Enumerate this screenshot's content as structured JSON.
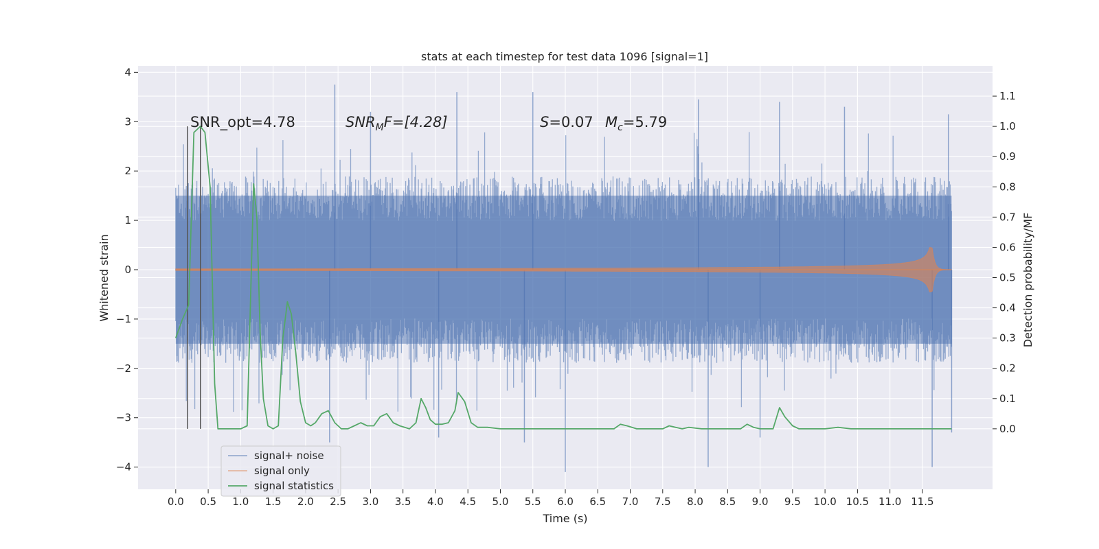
{
  "chart_data": {
    "type": "line",
    "title": "stats at each timestep for test data 1096 [signal=1]",
    "xlabel": "Time (s)",
    "ylabel": "Whitened strain",
    "ylabel_right": "Detection probability/MF",
    "xlim": [
      -0.58,
      12.58
    ],
    "ylim": [
      -4.45,
      4.13
    ],
    "ylim_right": [
      -0.2,
      1.2
    ],
    "grid": true,
    "legend_position": "lower-left",
    "x_ticks": [
      "0.0",
      "0.5",
      "1.0",
      "1.5",
      "2.0",
      "2.5",
      "3.0",
      "3.5",
      "4.0",
      "4.5",
      "5.0",
      "5.5",
      "6.0",
      "6.5",
      "7.0",
      "7.5",
      "8.0",
      "8.5",
      "9.0",
      "9.5",
      "10.0",
      "10.5",
      "11.0",
      "11.5"
    ],
    "y_ticks": [
      "−4",
      "−3",
      "−2",
      "−1",
      "0",
      "1",
      "2",
      "3",
      "4"
    ],
    "y_ticks_right": [
      "0.0",
      "0.1",
      "0.2",
      "0.3",
      "0.4",
      "0.5",
      "0.6",
      "0.7",
      "0.8",
      "0.9",
      "1.0",
      "1.1"
    ],
    "annotations": [
      {
        "id": "snr_opt",
        "text": "SNR_opt=4.78"
      },
      {
        "id": "snr_mf",
        "text": "SNRMF=[4.28]",
        "parts": [
          "SNR",
          "M",
          "F=[4.28]"
        ]
      },
      {
        "id": "s",
        "text": "S=0.07",
        "parts": [
          "S",
          "=0.07"
        ]
      },
      {
        "id": "mc",
        "text": "Mc=5.79",
        "parts": [
          "M",
          "c",
          "=5.79"
        ]
      }
    ],
    "vlines_x": [
      0.18,
      0.38
    ],
    "series": [
      {
        "name": "signal+ noise",
        "color": "#4c72b0",
        "kind": "noise",
        "duration": 11.95,
        "typical_range": [
          -1.8,
          1.8
        ],
        "extremes": {
          "max": 3.75,
          "min": -4.1
        },
        "spikes": [
          {
            "x": 2.45,
            "y": 3.75
          },
          {
            "x": 4.33,
            "y": 3.6
          },
          {
            "x": 5.5,
            "y": 3.6
          },
          {
            "x": 8.05,
            "y": 3.45
          },
          {
            "x": 9.3,
            "y": 3.4
          },
          {
            "x": 3.0,
            "y": 3.2
          },
          {
            "x": 10.3,
            "y": 3.3
          },
          {
            "x": 11.9,
            "y": 3.15
          },
          {
            "x": 6.0,
            "y": -4.1
          },
          {
            "x": 8.2,
            "y": -4.0
          },
          {
            "x": 11.65,
            "y": -4.0
          },
          {
            "x": 5.37,
            "y": -3.5
          },
          {
            "x": 2.37,
            "y": -3.5
          },
          {
            "x": 4.05,
            "y": -3.4
          },
          {
            "x": 9.0,
            "y": -3.4
          },
          {
            "x": 11.95,
            "y": -3.3
          }
        ]
      },
      {
        "name": "signal only",
        "color": "#dd8452",
        "kind": "chirp",
        "x_start": 0.0,
        "x_peak": 11.65,
        "x_end": 11.95,
        "peak_amplitude": 0.45
      },
      {
        "name": "signal statistics",
        "color": "#55a868",
        "axis": "right",
        "x": [
          0.0,
          0.1,
          0.2,
          0.28,
          0.38,
          0.45,
          0.53,
          0.6,
          0.65,
          0.8,
          1.0,
          1.1,
          1.2,
          1.25,
          1.3,
          1.35,
          1.42,
          1.5,
          1.58,
          1.65,
          1.72,
          1.78,
          1.85,
          1.92,
          2.0,
          2.08,
          2.15,
          2.25,
          2.35,
          2.45,
          2.55,
          2.65,
          2.75,
          2.85,
          2.95,
          3.05,
          3.15,
          3.25,
          3.35,
          3.45,
          3.6,
          3.7,
          3.78,
          3.85,
          3.92,
          4.0,
          4.1,
          4.2,
          4.3,
          4.35,
          4.45,
          4.55,
          4.65,
          4.8,
          5.0,
          5.2,
          5.4,
          5.6,
          5.8,
          6.0,
          6.2,
          6.5,
          6.75,
          6.85,
          6.95,
          7.1,
          7.3,
          7.5,
          7.6,
          7.7,
          7.8,
          7.9,
          8.1,
          8.3,
          8.5,
          8.7,
          8.8,
          8.9,
          9.0,
          9.2,
          9.3,
          9.38,
          9.5,
          9.6,
          9.8,
          10.0,
          10.2,
          10.4,
          10.6,
          10.8,
          11.0,
          11.2,
          11.4,
          11.6,
          11.8,
          11.95
        ],
        "values": [
          0.3,
          0.36,
          0.41,
          0.98,
          1.0,
          0.98,
          0.8,
          0.15,
          0.0,
          0.0,
          0.0,
          0.01,
          0.81,
          0.7,
          0.32,
          0.1,
          0.01,
          0.0,
          0.01,
          0.3,
          0.42,
          0.38,
          0.25,
          0.09,
          0.02,
          0.01,
          0.02,
          0.05,
          0.06,
          0.02,
          0.0,
          0.0,
          0.01,
          0.02,
          0.01,
          0.01,
          0.04,
          0.05,
          0.02,
          0.01,
          0.0,
          0.02,
          0.1,
          0.07,
          0.03,
          0.015,
          0.015,
          0.02,
          0.06,
          0.12,
          0.09,
          0.02,
          0.005,
          0.005,
          0.0,
          0.0,
          0.0,
          0.0,
          0.0,
          0.0,
          0.0,
          0.0,
          0.0,
          0.015,
          0.01,
          0.0,
          0.0,
          0.0,
          0.01,
          0.005,
          0.0,
          0.005,
          0.0,
          0.0,
          0.0,
          0.0,
          0.015,
          0.005,
          0.0,
          0.0,
          0.07,
          0.04,
          0.01,
          0.0,
          0.0,
          0.0,
          0.005,
          0.0,
          0.0,
          0.0,
          0.0,
          0.0,
          0.0,
          0.0,
          0.0,
          0.0
        ]
      }
    ]
  }
}
